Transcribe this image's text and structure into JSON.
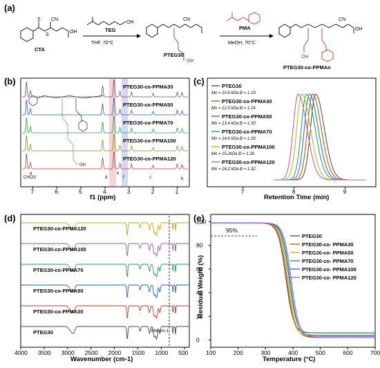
{
  "panel_labels": {
    "a": "(a)",
    "b": "(b)",
    "c": "(c)",
    "d": "(d)",
    "e": "(e)"
  },
  "scheme": {
    "cta_label": "CTA",
    "teg_reagent": "TEG",
    "step1_conditions": "THF, 70°C",
    "pteg_label": "PTEG30",
    "pma_reagent": "PMA",
    "step2_conditions": "MeOH, 70°C",
    "product_label": "PTEG30-co-PPMAn",
    "cn": "CN",
    "oh": "OH",
    "s": "S"
  },
  "nmr": {
    "xlabel": "f1 (ppm)",
    "ticks": [
      "7",
      "6",
      "5",
      "4",
      "3",
      "2",
      "1"
    ],
    "traces": [
      "PTEG30-co-PPMA30",
      "PTEG30-co-PPMA50",
      "PTEG30-co-PPMA70",
      "PTEG30-co-PPMA100",
      "PTEG30-co-PPMA120"
    ],
    "colors": [
      "#7b3f8a",
      "#1f5fbf",
      "#1f9a5a",
      "#8a8a1a",
      "#c0392b"
    ],
    "peak_labels": {
      "chcl3": "CHCl3",
      "a": "a",
      "d": "d",
      "e": "e",
      "f": "f",
      "c": "c",
      "b": "b"
    }
  },
  "gpc": {
    "xlabel": "Retention Time (min)",
    "ticks": [
      "7",
      "8",
      "9"
    ],
    "entries": [
      {
        "name": "PTEG30",
        "info": "Mn = 10.6 kDa  Đ = 1.19",
        "color": "#555555"
      },
      {
        "name": "PTEG30-co-PPMA30",
        "info": "Mn = 12.0 kDa  Đ = 1.24",
        "color": "#d35400"
      },
      {
        "name": "PTEG30-co-PPMA50",
        "info": "Mn = 13.4 kDa  Đ = 1.30",
        "color": "#2e6fd1"
      },
      {
        "name": "PTEG30-co-PPMA70",
        "info": "Mn = 14.6 kDa  Đ = 1.26",
        "color": "#1fa57a"
      },
      {
        "name": "PTEG30-co-PPMA100",
        "info": "Mn = 15.2kDa  Đ = 1.26",
        "color": "#c9b800"
      },
      {
        "name": "PTEG30-co-PPMA120",
        "info": "Mn = 16.2 kDa  Đ = 1.32",
        "color": "#b45fd6"
      }
    ],
    "peak_minutes": [
      8.42,
      8.36,
      8.3,
      8.24,
      8.15,
      8.08
    ]
  },
  "ftir": {
    "xlabel": "Wavenumber (cm-1)",
    "ticks": [
      "4000",
      "3500",
      "3000",
      "2500",
      "2000",
      "1500",
      "1000",
      "500"
    ],
    "annotation": "694 cm-1",
    "traces": [
      "PTEG30-co-PPMA120",
      "PTEG30-co-PPMA100",
      "PTEG30-co-PPMA70",
      "PTEG30-co-PPMA50",
      "PTEG30-co-PPMA30",
      "PTEG30"
    ],
    "colors": [
      "#c9a400",
      "#9b59b6",
      "#1f9a5a",
      "#1f5fbf",
      "#c0392b",
      "#444444"
    ]
  },
  "tga": {
    "xlabel": "Temperature (°C)",
    "ylabel": "Residual Weight (%)",
    "xticks": [
      "100",
      "200",
      "300",
      "400",
      "500",
      "600",
      "700"
    ],
    "yticks": [
      "100",
      "80",
      "60",
      "40",
      "20",
      "0"
    ],
    "annotation": "95%",
    "legend": [
      "PTEG30",
      "PTEG30-co- PPMA30",
      "PTEG30-co- PPMA50",
      "PTEG30-co- PPMA70",
      "PTEG30-co- PPMA100",
      "PTEG30-co- PPMA120"
    ],
    "colors": [
      "#555555",
      "#d35400",
      "#c9b800",
      "#1f9a5a",
      "#2e6fd1",
      "#b45fd6"
    ]
  }
}
